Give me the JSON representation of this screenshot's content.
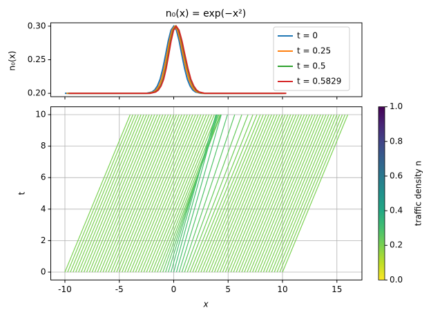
{
  "chart_data": [
    {
      "type": "line",
      "title": "n₀(x) = exp(−x²)",
      "ylabel": "n₀(x)",
      "ylim": [
        0.195,
        0.305
      ],
      "yticks": [
        {
          "value": 0.2,
          "label": "0.20"
        },
        0.25,
        {
          "value": 0.3,
          "label": "0.30"
        }
      ],
      "legend": "upper right",
      "grid": false,
      "series": [
        {
          "name": "t = 0",
          "color": "#1f77b4",
          "x": [
            -10,
            -2.5,
            -2,
            -1.75,
            -1.5,
            -1.25,
            -1,
            -0.75,
            -0.5,
            -0.25,
            0,
            0.25,
            0.5,
            0.75,
            1,
            1.25,
            1.5,
            1.75,
            2,
            2.5,
            10
          ],
          "values": [
            0.2,
            0.2,
            0.202,
            0.205,
            0.211,
            0.221,
            0.237,
            0.257,
            0.278,
            0.294,
            0.3,
            0.294,
            0.278,
            0.257,
            0.237,
            0.221,
            0.211,
            0.205,
            0.202,
            0.2,
            0.2
          ]
        },
        {
          "name": "t = 0.25",
          "color": "#ff7f0e",
          "x": [
            -9.85,
            -2.35,
            -1.851,
            -1.602,
            -1.355,
            -1.11,
            -0.868,
            -0.628,
            -0.389,
            -0.147,
            0.1,
            0.353,
            0.611,
            0.872,
            1.132,
            1.39,
            1.645,
            1.898,
            2.149,
            2.65,
            10.15
          ],
          "values": [
            0.2,
            0.2,
            0.202,
            0.205,
            0.211,
            0.221,
            0.237,
            0.257,
            0.278,
            0.294,
            0.3,
            0.294,
            0.278,
            0.257,
            0.237,
            0.221,
            0.211,
            0.205,
            0.202,
            0.2,
            0.2
          ]
        },
        {
          "name": "t = 0.5",
          "color": "#2ca02c",
          "x": [
            -9.7,
            -2.2,
            -1.702,
            -1.454,
            -1.21,
            -0.971,
            -0.737,
            -0.507,
            -0.278,
            -0.044,
            0.2,
            0.456,
            0.722,
            0.993,
            1.263,
            1.529,
            1.79,
            2.046,
            2.298,
            2.8,
            10.3
          ],
          "values": [
            0.2,
            0.2,
            0.202,
            0.205,
            0.211,
            0.221,
            0.237,
            0.257,
            0.278,
            0.294,
            0.3,
            0.294,
            0.278,
            0.257,
            0.237,
            0.221,
            0.211,
            0.205,
            0.202,
            0.2,
            0.2
          ]
        },
        {
          "name": "t = 0.5829",
          "color": "#d62728",
          "x": [
            -9.65,
            -2.15,
            -1.653,
            -1.406,
            -1.162,
            -0.925,
            -0.693,
            -0.467,
            -0.241,
            -0.01,
            0.233,
            0.49,
            0.759,
            1.033,
            1.307,
            1.575,
            1.838,
            2.094,
            2.347,
            2.85,
            10.35
          ],
          "values": [
            0.2,
            0.2,
            0.202,
            0.205,
            0.211,
            0.221,
            0.237,
            0.257,
            0.278,
            0.294,
            0.3,
            0.294,
            0.278,
            0.257,
            0.237,
            0.221,
            0.211,
            0.205,
            0.202,
            0.2,
            0.2
          ]
        }
      ]
    },
    {
      "type": "segments",
      "xlabel": "x",
      "ylabel": "t",
      "xlim": [
        -11.3,
        17.3
      ],
      "ylim": [
        -0.5,
        10.5
      ],
      "xticks": [
        -10,
        -5,
        0,
        5,
        10,
        15
      ],
      "yticks": [
        0,
        2,
        4,
        6,
        8,
        10
      ],
      "grid": true,
      "t": [
        0,
        10
      ],
      "x0": [
        -10,
        -9.75,
        -9.5,
        -9.25,
        -9,
        -8.75,
        -8.5,
        -8.25,
        -8,
        -7.75,
        -7.5,
        -7.25,
        -7,
        -6.75,
        -6.5,
        -6.25,
        -6,
        -5.75,
        -5.5,
        -5.25,
        -5,
        -4.75,
        -4.5,
        -4.25,
        -4,
        -3.75,
        -3.5,
        -3.25,
        -3,
        -2.75,
        -2.5,
        -2.25,
        -2,
        -1.75,
        -1.5,
        -1.25,
        -1,
        -0.75,
        -0.5,
        -0.25,
        0,
        0.25,
        0.5,
        0.75,
        1,
        1.25,
        1.5,
        1.75,
        2,
        2.25,
        2.5,
        2.75,
        3,
        3.25,
        3.5,
        3.75,
        4,
        4.25,
        4.5,
        4.75,
        5,
        5.25,
        5.5,
        5.75,
        6,
        6.25,
        6.5,
        6.75,
        7,
        7.25,
        7.5,
        7.75,
        8,
        8.25,
        8.5,
        8.75,
        9,
        9.25,
        9.5,
        9.75,
        10
      ],
      "x_end": [
        -4,
        -3.75,
        -3.5,
        -3.25,
        -3,
        -2.75,
        -2.5,
        -2.25,
        -2,
        -1.75,
        -1.5,
        -1.25,
        -1,
        -0.75,
        -0.5,
        -0.25,
        0,
        0.25,
        0.5,
        0.75,
        1,
        1.25,
        1.5,
        1.75,
        2,
        2.25,
        2.5,
        2.75,
        3,
        3.25,
        3.5,
        3.73,
        3.96,
        4.15,
        4.28,
        4.33,
        4.26,
        4.11,
        3.94,
        3.87,
        4,
        4.37,
        4.94,
        5.61,
        6.26,
        6.83,
        7.28,
        7.65,
        7.96,
        8.23,
        8.5,
        8.75,
        9,
        9.25,
        9.5,
        9.75,
        10,
        10.25,
        10.5,
        10.75,
        11,
        11.25,
        11.5,
        11.75,
        12,
        12.25,
        12.5,
        12.75,
        13,
        13.25,
        13.5,
        13.75,
        14,
        14.25,
        14.5,
        14.75,
        15,
        15.25,
        15.5,
        15.75,
        16
      ],
      "density": [
        0.2,
        0.2,
        0.2,
        0.2,
        0.2,
        0.2,
        0.2,
        0.2,
        0.2,
        0.2,
        0.2,
        0.2,
        0.2,
        0.2,
        0.2,
        0.2,
        0.2,
        0.2,
        0.2,
        0.2,
        0.2,
        0.2,
        0.2,
        0.2,
        0.2,
        0.2,
        0.2,
        0.2,
        0.2,
        0.2,
        0.2,
        0.201,
        0.202,
        0.205,
        0.211,
        0.221,
        0.237,
        0.257,
        0.278,
        0.294,
        0.3,
        0.294,
        0.278,
        0.257,
        0.237,
        0.221,
        0.211,
        0.205,
        0.202,
        0.201,
        0.2,
        0.2,
        0.2,
        0.2,
        0.2,
        0.2,
        0.2,
        0.2,
        0.2,
        0.2,
        0.2,
        0.2,
        0.2,
        0.2,
        0.2,
        0.2,
        0.2,
        0.2,
        0.2,
        0.2,
        0.2,
        0.2,
        0.2,
        0.2,
        0.2,
        0.2,
        0.2,
        0.2,
        0.2,
        0.2,
        0.2
      ],
      "colorbar": {
        "label": "traffic density n",
        "colormap": "viridis_r",
        "lim": [
          0,
          1
        ],
        "ticks": [
          {
            "value": 0,
            "label": "0.0"
          },
          0.2,
          0.4,
          0.6,
          0.8,
          {
            "value": 1,
            "label": "1.0"
          }
        ]
      }
    }
  ]
}
